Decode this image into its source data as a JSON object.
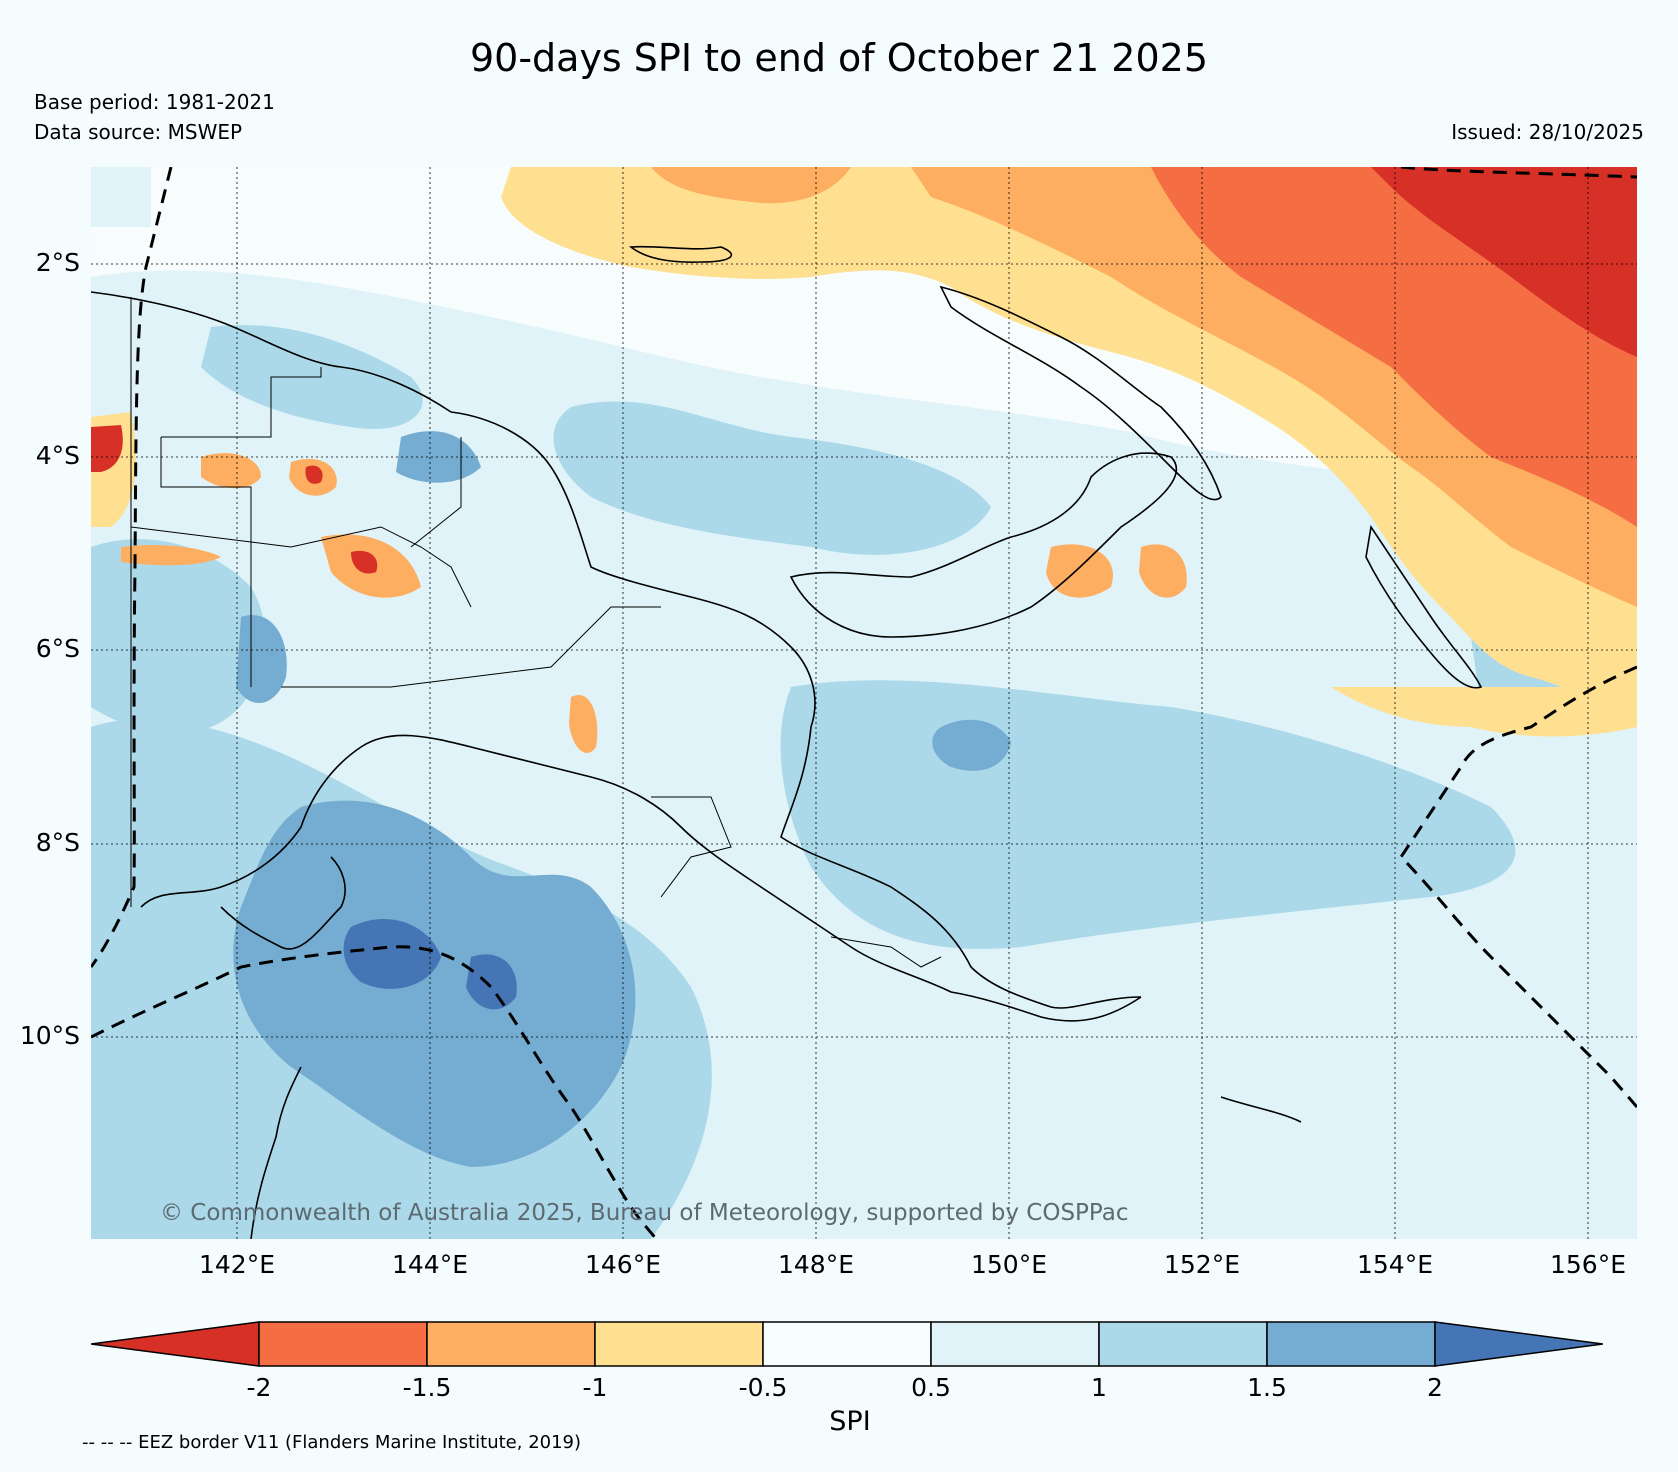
{
  "header": {
    "title": "90-days SPI to end of October 21 2025",
    "base_period": "Base period: 1981-2021",
    "data_source": "Data source: MSWEP",
    "issued": "Issued: 28/10/2025"
  },
  "map": {
    "lat_labels": [
      "2°S",
      "4°S",
      "6°S",
      "8°S",
      "10°S"
    ],
    "lon_labels": [
      "142°E",
      "144°E",
      "146°E",
      "148°E",
      "150°E",
      "152°E",
      "154°E",
      "156°E"
    ],
    "copyright": "© Commonwealth of Australia 2025, Bureau of Meteorology, supported by COSPPac"
  },
  "colorbar": {
    "label": "SPI",
    "ticks": [
      "-2",
      "-1.5",
      "-1",
      "-0.5",
      "0.5",
      "1",
      "1.5",
      "2"
    ],
    "colors": [
      "#d73027",
      "#f46d43",
      "#fdae61",
      "#fee090",
      "#f7fcfd",
      "#e0f3f8",
      "#abd9e9",
      "#74add1",
      "#4575b4"
    ]
  },
  "footnote": "-- -- -- EEZ border V11 (Flanders Marine Institute, 2019)"
}
